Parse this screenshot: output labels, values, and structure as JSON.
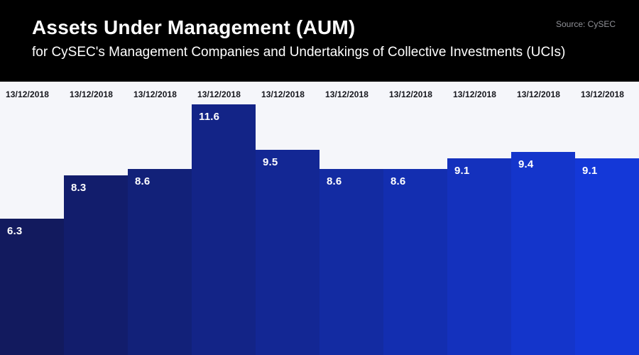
{
  "header": {
    "title": "Assets Under Management (AUM)",
    "subtitle": "for CySEC's Management Companies and Undertakings of Collective Investments (UCIs)",
    "source": "Source: CySEC"
  },
  "colors": {
    "header_bg": "#000000",
    "chart_bg": "#f5f6fa",
    "source_text": "#909197",
    "date_label_text": "#15161c",
    "value_label_text": "#ffffff"
  },
  "chart_data": {
    "type": "bar",
    "title": "Assets Under Management (AUM)",
    "subtitle": "for CySEC's Management Companies and Undertakings of Collective Investments (UCIs)",
    "source": "Source: CySEC",
    "categories": [
      "13/12/2018",
      "13/12/2018",
      "13/12/2018",
      "13/12/2018",
      "13/12/2018",
      "13/12/2018",
      "13/12/2018",
      "13/12/2018",
      "13/12/2018",
      "13/12/2018"
    ],
    "values": [
      6.3,
      8.3,
      8.6,
      11.6,
      9.5,
      8.6,
      8.6,
      9.1,
      9.4,
      9.1
    ],
    "bar_colors": [
      "#121a5e",
      "#121d6c",
      "#122179",
      "#132487",
      "#132794",
      "#132ba2",
      "#132eb0",
      "#1431bd",
      "#1435cb",
      "#1438d8"
    ],
    "data_labels_visible": true,
    "category_labels_position": "top",
    "ylim": [
      0,
      12.65
    ],
    "grid": false,
    "legend": false,
    "xlabel": "",
    "ylabel": ""
  }
}
